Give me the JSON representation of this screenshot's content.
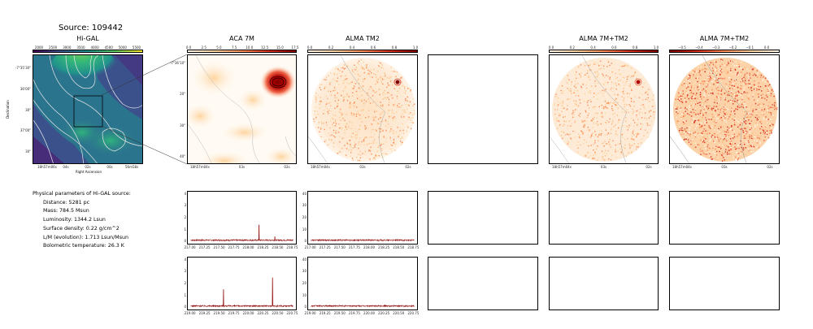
{
  "figure": {
    "title": "Source: 109442"
  },
  "panels": {
    "higal": {
      "title": "Hi-GAL",
      "colorbar_ticks": [
        "2000",
        "2500",
        "3000",
        "3500",
        "4000",
        "4500",
        "5000",
        "5500"
      ],
      "xlabel": "Right Ascension",
      "ylabel": "Declination",
      "xticks": [
        "18h57m06s",
        "04s",
        "02s",
        "00s",
        "56m58s"
      ],
      "yticks": [
        "-7°35'30\"",
        "36'00\"",
        "30\"",
        "37'00\"",
        "30\""
      ]
    },
    "aca": {
      "title": "ACA 7M",
      "colorbar_ticks": [
        "0.0",
        "2.5",
        "5.0",
        "7.5",
        "10.0",
        "12.5",
        "15.0",
        "17.5"
      ],
      "xticks": [
        "18h57m04s",
        "03s",
        "02s"
      ],
      "yticks": [
        "-7°36'10\"",
        "20\"",
        "30\"",
        "40\""
      ]
    },
    "alma_tm2": {
      "title": "ALMA TM2",
      "colorbar_ticks": [
        "0.0",
        "0.2",
        "0.4",
        "0.6",
        "0.8",
        "1.0"
      ],
      "xticks": [
        "18h57m04s",
        "03s",
        "02s"
      ]
    },
    "alma_combined_1": {
      "title": "ALMA 7M+TM2",
      "colorbar_ticks": [
        "0.0",
        "0.2",
        "0.4",
        "0.6",
        "0.8",
        "1.0"
      ],
      "xticks": [
        "18h57m04s",
        "03s",
        "02s"
      ]
    },
    "alma_combined_2": {
      "title": "ALMA 7M+TM2",
      "colorbar_ticks": [
        "−0.5",
        "−0.4",
        "−0.3",
        "−0.2",
        "−0.1",
        "0.0"
      ],
      "xticks": [
        "18h57m04s",
        "03s",
        "02s"
      ]
    }
  },
  "params": {
    "header": "Physical parameters of Hi-GAL source:",
    "distance": "Distance: 5281 pc",
    "mass": "Mass: 784.5 Msun",
    "luminosity": "Luminosity: 1344.2 Lsun",
    "surface_density": "Surface density: 0.22 g/cm^2",
    "lm": "L/M (evolution): 1.713 Lsun/Msun",
    "tbol": "Bolometric temperature: 26.3 K"
  },
  "colors": {
    "spectrum": "#8b0000",
    "viridis_low": "#440154",
    "viridis_high": "#fde725",
    "orange_low": "#fff7ec",
    "orange_high": "#7f0000"
  },
  "chart_data": [
    {
      "type": "line",
      "name": "spectrum-aca-row1",
      "x": [
        217.0,
        217.25,
        217.5,
        217.75,
        218.0,
        218.17,
        218.22,
        218.25,
        218.44,
        218.5,
        218.75
      ],
      "y": [
        0.1,
        0.1,
        0.1,
        0.1,
        0.1,
        1.4,
        0.1,
        0.1,
        0.4,
        0.1,
        0.1
      ],
      "xticks": [
        "217.00",
        "217.25",
        "217.50",
        "217.75",
        "218.00",
        "218.25",
        "218.50",
        "218.75"
      ],
      "yticks": [
        "0",
        "1",
        "2",
        "3",
        "4"
      ],
      "xlim": [
        216.95,
        218.8
      ],
      "ylim": [
        -0.2,
        4.2
      ]
    },
    {
      "type": "line",
      "name": "spectrum-alma-row1",
      "x": [
        217.0,
        217.5,
        218.0,
        218.5,
        218.75
      ],
      "y": [
        1,
        1,
        1,
        1,
        1
      ],
      "xticks": [
        "217.00",
        "217.25",
        "217.50",
        "217.75",
        "218.00",
        "218.25",
        "218.50",
        "218.75"
      ],
      "yticks": [
        "0",
        "10",
        "20",
        "30",
        "40"
      ],
      "xlim": [
        216.95,
        218.8
      ],
      "ylim": [
        -2,
        42
      ]
    },
    {
      "type": "line",
      "name": "spectrum-aca-row2",
      "x": [
        219.0,
        219.25,
        219.5,
        219.56,
        219.75,
        220.0,
        220.25,
        220.4,
        220.5,
        220.75
      ],
      "y": [
        0.1,
        0.1,
        0.1,
        1.5,
        0.1,
        0.1,
        0.1,
        2.5,
        0.1,
        0.1
      ],
      "xticks": [
        "219.00",
        "219.25",
        "219.50",
        "219.75",
        "220.00",
        "220.25",
        "220.50",
        "220.75"
      ],
      "yticks": [
        "0",
        "1",
        "2",
        "3",
        "4"
      ],
      "xlim": [
        218.95,
        220.8
      ],
      "ylim": [
        -0.2,
        4.2
      ]
    },
    {
      "type": "line",
      "name": "spectrum-alma-row2",
      "x": [
        219.0,
        219.5,
        220.0,
        220.25,
        220.5,
        220.75
      ],
      "y": [
        1,
        1,
        1,
        2,
        1,
        1
      ],
      "xticks": [
        "219.00",
        "219.25",
        "219.50",
        "219.75",
        "220.00",
        "220.25",
        "220.50",
        "220.75"
      ],
      "yticks": [
        "0",
        "10",
        "20",
        "30",
        "40"
      ],
      "xlim": [
        218.95,
        220.8
      ],
      "ylim": [
        -2,
        42
      ]
    }
  ]
}
